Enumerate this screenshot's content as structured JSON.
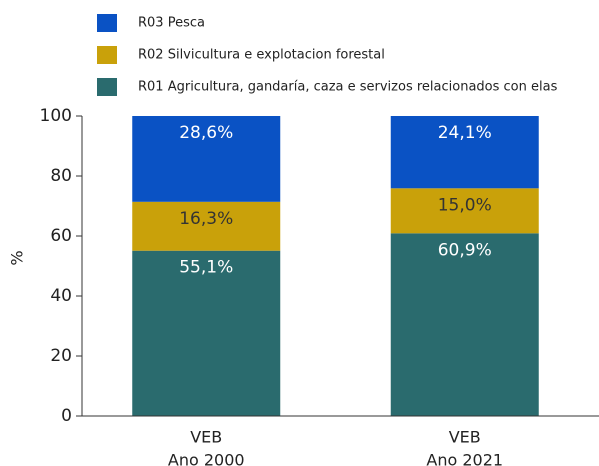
{
  "chart_data": {
    "type": "stacked_bar",
    "y_label": "%",
    "categories": [
      [
        "VEB",
        "Ano 2000"
      ],
      [
        "VEB",
        "Ano 2021"
      ]
    ],
    "series": [
      {
        "name": "R01 Agricultura, gandaría, caza e servizos relacionados con elas",
        "color": "#2a6b6e",
        "values": [
          55.1,
          60.9
        ],
        "value_labels": [
          "55,1%",
          "60,9%"
        ]
      },
      {
        "name": "R02 Silvicultura e explotacion forestal",
        "color": "#c9a10a",
        "values": [
          16.3,
          15.0
        ],
        "value_labels": [
          "16,3%",
          "15,0%"
        ]
      },
      {
        "name": "R03 Pesca",
        "color": "#0a52c4",
        "values": [
          28.6,
          24.1
        ],
        "value_labels": [
          "28,6%",
          "24,1%"
        ]
      }
    ],
    "ylim": [
      0,
      100
    ],
    "yticks": [
      0,
      20,
      40,
      60,
      80,
      100
    ]
  }
}
